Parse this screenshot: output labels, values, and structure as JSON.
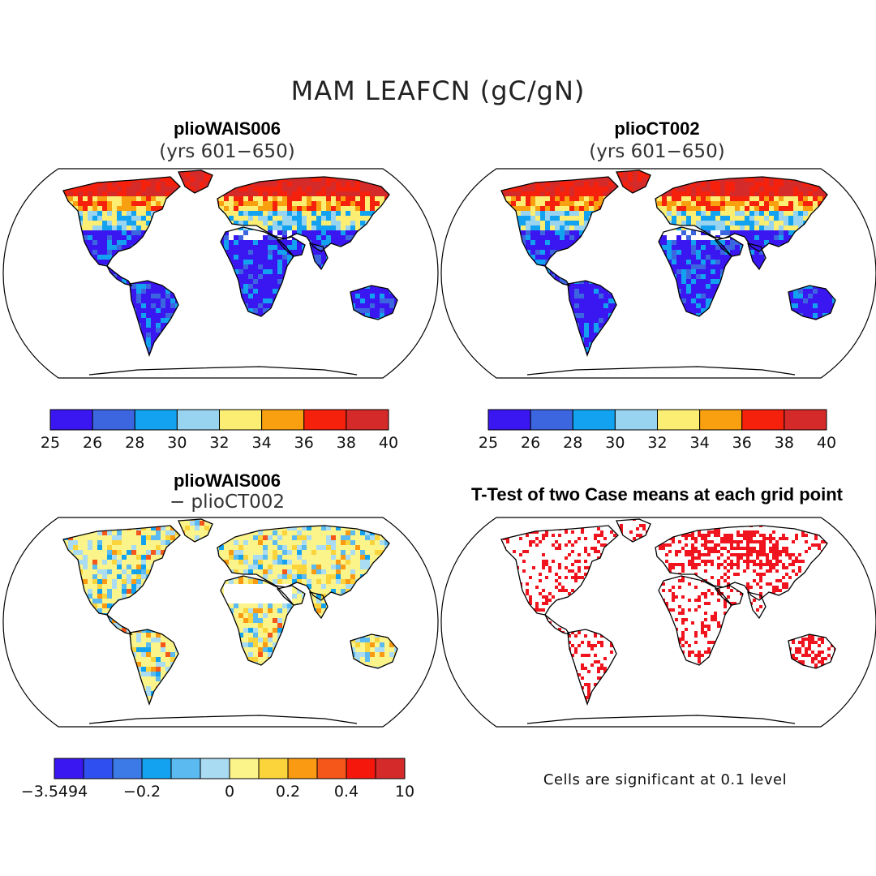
{
  "figure": {
    "title": "MAM LEAFCN (gC/gN)",
    "panels": [
      {
        "title": "plioWAIS006",
        "subtitle": "(yrs 601−650)"
      },
      {
        "title": "plioCT002",
        "subtitle": "(yrs 601−650)"
      },
      {
        "title": "plioWAIS006",
        "subtitle": "− plioCT002"
      },
      {
        "title": "T-Test of two Case means at each grid point",
        "subtitle": ""
      }
    ],
    "note": "Cells are significant at 0.1 level"
  },
  "colorbars": [
    {
      "colors": [
        "#3a17f0",
        "#3c66e0",
        "#12a2f0",
        "#98d3f0",
        "#fbee72",
        "#f9a011",
        "#f5210c",
        "#d52a2a"
      ],
      "labels": [
        "25",
        "26",
        "28",
        "30",
        "32",
        "34",
        "36",
        "38",
        "40"
      ]
    },
    {
      "colors": [
        "#3a17f0",
        "#3c66e0",
        "#12a2f0",
        "#98d3f0",
        "#fbee72",
        "#f9a011",
        "#f5210c",
        "#d52a2a"
      ],
      "labels": [
        "25",
        "26",
        "28",
        "30",
        "32",
        "34",
        "36",
        "38",
        "40"
      ]
    },
    {
      "colors": [
        "#3a17f0",
        "#2f4ff0",
        "#3c7ae8",
        "#12a2f0",
        "#5bbaf0",
        "#a9dbf2",
        "#fbf48a",
        "#fbd33a",
        "#f99a12",
        "#f5561a",
        "#f5170c",
        "#d52a2a"
      ],
      "labels": [
        "−3.5494",
        "",
        "",
        "−0.2",
        "",
        "",
        "0",
        "",
        "0.2",
        "",
        "0.4",
        "",
        "10"
      ]
    }
  ],
  "colors": {
    "land_outline": "#000000",
    "significant_cells": "#f0141e"
  }
}
